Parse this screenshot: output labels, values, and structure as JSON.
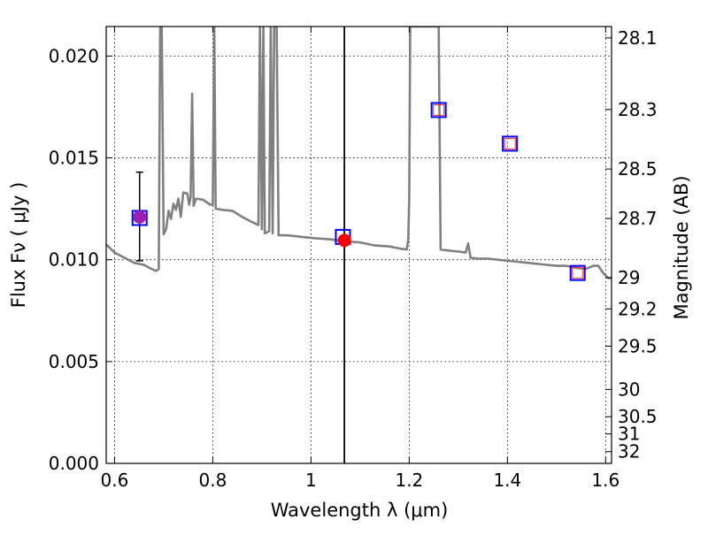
{
  "chart_data": {
    "type": "line",
    "title": "",
    "xlabel": "Wavelength  λ (μm)",
    "ylabel": "Flux  Fν  ( μJy )",
    "y2label": "Magnitude (AB)",
    "xlim": [
      0.583,
      1.612
    ],
    "ylim": [
      0.0,
      0.02145
    ],
    "grid": true,
    "x_ticks": [
      0.6,
      0.8,
      1.0,
      1.2,
      1.4,
      1.6
    ],
    "x_tick_labels": [
      "0.6",
      "0.8",
      "1",
      "1.2",
      "1.4",
      "1.6"
    ],
    "y_ticks": [
      0.0,
      0.005,
      0.01,
      0.015,
      0.02
    ],
    "y_tick_labels": [
      "0.000",
      "0.005",
      "0.010",
      "0.015",
      "0.020"
    ],
    "y2_ticks": [
      28.1,
      28.3,
      28.5,
      28.7,
      29,
      29.2,
      29.5,
      30,
      30.5,
      31,
      32
    ],
    "y2_tick_labels": [
      "28.1",
      "28.3",
      "28.5",
      "28.7",
      "29",
      "29.2",
      "29.5",
      "30",
      "30.5",
      "31",
      "32"
    ],
    "vertical_line_x": 1.068,
    "spectrum": {
      "name": "model spectrum",
      "color": "#808080",
      "points": [
        [
          0.583,
          0.01075
        ],
        [
          0.6,
          0.01035
        ],
        [
          0.62,
          0.0101
        ],
        [
          0.64,
          0.00985
        ],
        [
          0.66,
          0.00975
        ],
        [
          0.675,
          0.00955
        ],
        [
          0.685,
          0.00945
        ],
        [
          0.69,
          0.00955
        ],
        [
          0.693,
          0.0215
        ],
        [
          0.696,
          0.0215
        ],
        [
          0.7,
          0.01125
        ],
        [
          0.705,
          0.0115
        ],
        [
          0.71,
          0.0124
        ],
        [
          0.715,
          0.012
        ],
        [
          0.72,
          0.01275
        ],
        [
          0.725,
          0.01245
        ],
        [
          0.73,
          0.013
        ],
        [
          0.735,
          0.0121
        ],
        [
          0.74,
          0.0133
        ],
        [
          0.748,
          0.01325
        ],
        [
          0.752,
          0.0127
        ],
        [
          0.755,
          0.0131
        ],
        [
          0.758,
          0.01815
        ],
        [
          0.761,
          0.01265
        ],
        [
          0.766,
          0.013
        ],
        [
          0.78,
          0.01295
        ],
        [
          0.795,
          0.0127
        ],
        [
          0.8,
          0.0127
        ],
        [
          0.803,
          0.0215
        ],
        [
          0.806,
          0.0125
        ],
        [
          0.82,
          0.01245
        ],
        [
          0.84,
          0.0124
        ],
        [
          0.86,
          0.0121
        ],
        [
          0.88,
          0.01185
        ],
        [
          0.893,
          0.0117
        ],
        [
          0.896,
          0.0215
        ],
        [
          0.9,
          0.0115
        ],
        [
          0.903,
          0.0215
        ],
        [
          0.906,
          0.0113
        ],
        [
          0.915,
          0.0114
        ],
        [
          0.918,
          0.0215
        ],
        [
          0.922,
          0.0113
        ],
        [
          0.925,
          0.0215
        ],
        [
          0.93,
          0.0215
        ],
        [
          0.934,
          0.0112
        ],
        [
          0.95,
          0.0112
        ],
        [
          0.97,
          0.01115
        ],
        [
          0.99,
          0.0111
        ],
        [
          1.01,
          0.01105
        ],
        [
          1.04,
          0.011
        ],
        [
          1.07,
          0.0109
        ],
        [
          1.1,
          0.01085
        ],
        [
          1.13,
          0.0107
        ],
        [
          1.16,
          0.01065
        ],
        [
          1.18,
          0.01055
        ],
        [
          1.195,
          0.0105
        ],
        [
          1.198,
          0.011
        ],
        [
          1.2,
          0.013
        ],
        [
          1.202,
          0.02145
        ],
        [
          1.26,
          0.02145
        ],
        [
          1.264,
          0.0105
        ],
        [
          1.28,
          0.01045
        ],
        [
          1.3,
          0.0104
        ],
        [
          1.315,
          0.01035
        ],
        [
          1.32,
          0.0108
        ],
        [
          1.325,
          0.0101
        ],
        [
          1.34,
          0.01005
        ],
        [
          1.36,
          0.01005
        ],
        [
          1.38,
          0.01
        ],
        [
          1.4,
          0.00995
        ],
        [
          1.42,
          0.0099
        ],
        [
          1.44,
          0.00985
        ],
        [
          1.46,
          0.0098
        ],
        [
          1.48,
          0.00975
        ],
        [
          1.5,
          0.0097
        ],
        [
          1.52,
          0.0097
        ],
        [
          1.54,
          0.0096
        ],
        [
          1.56,
          0.00955
        ],
        [
          1.575,
          0.0097
        ],
        [
          1.585,
          0.0097
        ],
        [
          1.595,
          0.00935
        ],
        [
          1.605,
          0.0091
        ],
        [
          1.612,
          0.0091
        ]
      ]
    },
    "model_photometry": {
      "name": "model photometry (blue squares)",
      "color": "#0000ff",
      "points": [
        [
          0.651,
          0.01205
        ],
        [
          1.065,
          0.01112
        ],
        [
          1.26,
          0.01735
        ],
        [
          1.405,
          0.0157
        ],
        [
          1.543,
          0.00935
        ]
      ]
    },
    "observed_photometry_small": {
      "name": "observed photometry (small red squares)",
      "color": "#ff2a2a",
      "points": [
        [
          1.26,
          0.01735
        ],
        [
          1.405,
          0.0157
        ],
        [
          1.543,
          0.00935
        ]
      ]
    },
    "observed_points": [
      {
        "name": "purple point",
        "x": 0.651,
        "y": 0.0121,
        "color": "#9b1fb0",
        "error": [
          0.00995,
          0.0143
        ]
      },
      {
        "name": "red point",
        "x": 1.068,
        "y": 0.01095,
        "color": "#ff0000"
      }
    ]
  }
}
